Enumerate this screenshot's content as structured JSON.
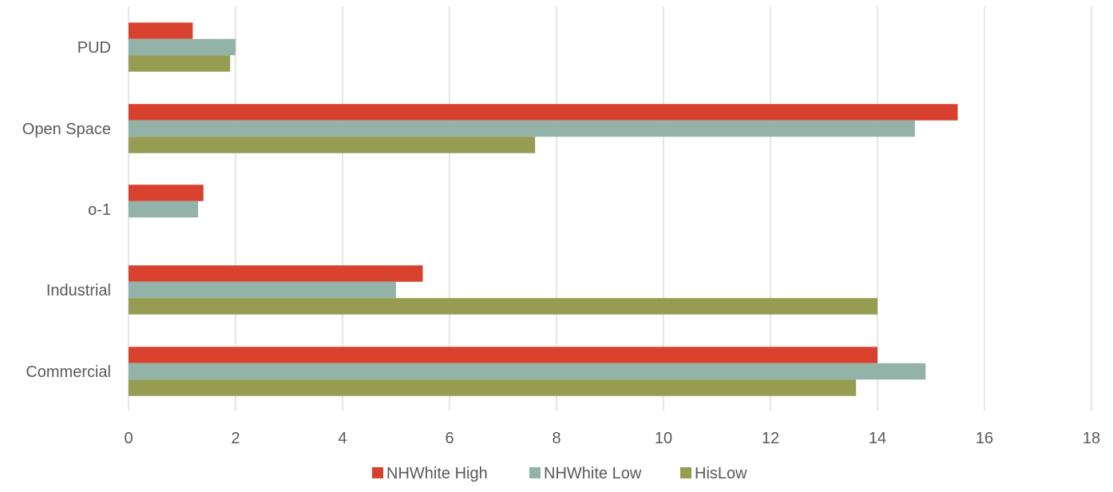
{
  "chart_data": {
    "type": "bar",
    "orientation": "horizontal",
    "categories": [
      "PUD",
      "Open Space",
      "o-1",
      "Industrial",
      "Commercial"
    ],
    "series": [
      {
        "name": "NHWhite High",
        "color": "#d9412f",
        "values": [
          1.2,
          15.5,
          1.4,
          5.5,
          14.0
        ]
      },
      {
        "name": "NHWhite Low",
        "color": "#93b3a9",
        "values": [
          2.0,
          14.7,
          1.3,
          5.0,
          14.9
        ]
      },
      {
        "name": "HisLow",
        "color": "#969d52",
        "values": [
          1.9,
          7.6,
          0,
          14.0,
          13.6
        ]
      }
    ],
    "xlim": [
      0,
      18
    ],
    "x_ticks": [
      "0",
      "2",
      "4",
      "6",
      "8",
      "10",
      "12",
      "14",
      "16",
      "18"
    ],
    "grid": "vertical",
    "grid_color": "#d9d9d9",
    "legend_position": "bottom"
  }
}
